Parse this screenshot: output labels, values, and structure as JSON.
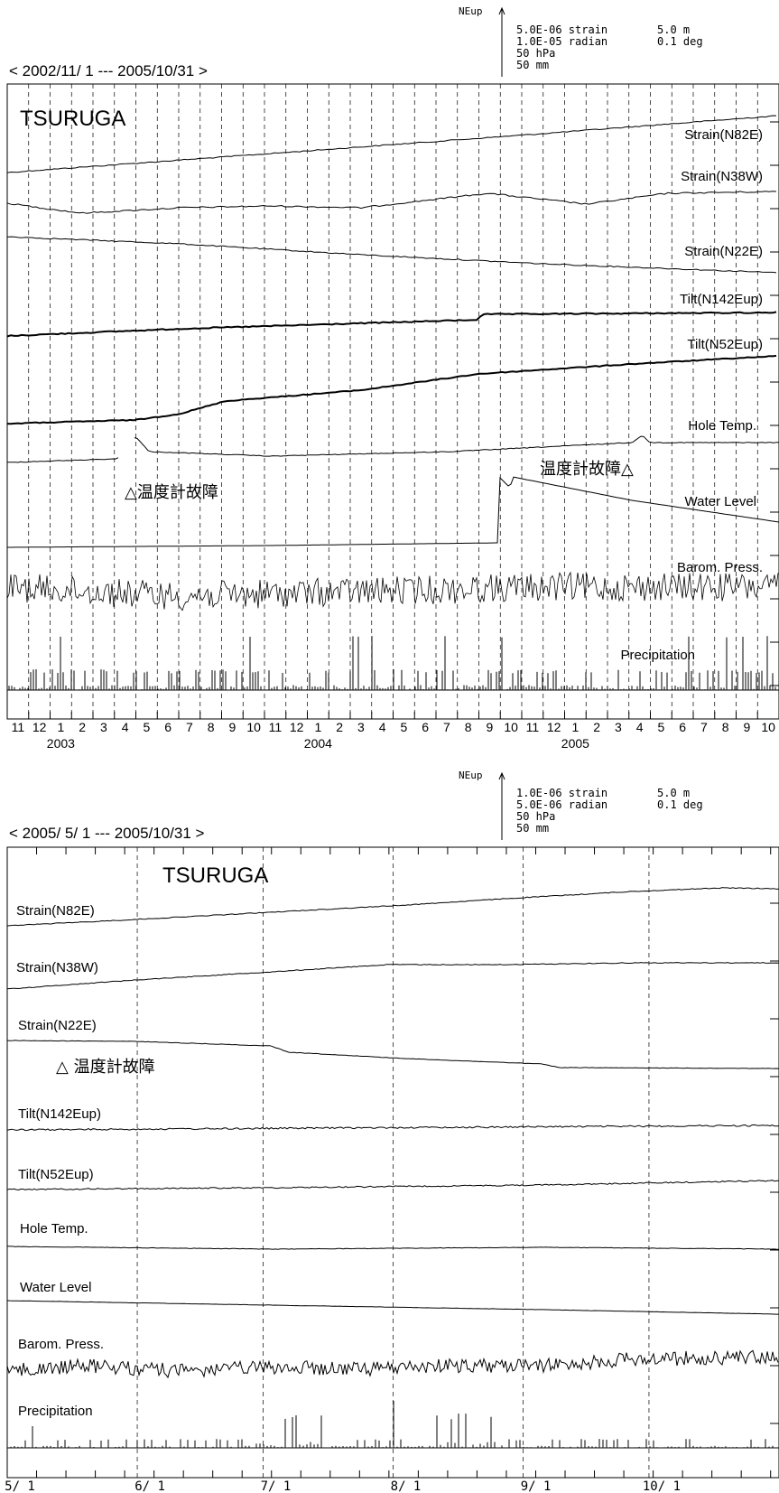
{
  "chart_data": [
    {
      "type": "line",
      "station": "TSURUGA",
      "period": "< 2002/11/ 1 --- 2005/10/31 >",
      "scale_legend": {
        "arrow_label": "NEup",
        "left": [
          "5.0E-06 strain",
          "1.0E-05 radian",
          "50 hPa",
          "50 mm"
        ],
        "right": [
          "5.0 m",
          "0.1 deg"
        ]
      },
      "month_labels": [
        "11",
        "12",
        "1",
        "2",
        "3",
        "4",
        "5",
        "6",
        "7",
        "8",
        "9",
        "10",
        "11",
        "12",
        "1",
        "2",
        "3",
        "4",
        "5",
        "6",
        "7",
        "8",
        "9",
        "10",
        "11",
        "12",
        "1",
        "2",
        "3",
        "4",
        "5",
        "6",
        "7",
        "8",
        "9",
        "10"
      ],
      "year_labels": [
        {
          "text": "2003",
          "month_index": 2
        },
        {
          "text": "2004",
          "month_index": 14
        },
        {
          "text": "2005",
          "month_index": 26
        }
      ],
      "annotations": [
        {
          "text": "△温度計故障"
        },
        {
          "text": "温度計故障△"
        }
      ],
      "series": [
        {
          "name": "Strain(N82E)"
        },
        {
          "name": "Strain(N38W)"
        },
        {
          "name": "Strain(N22E)"
        },
        {
          "name": "Tilt(N142Eup)"
        },
        {
          "name": "Tilt(N52Eup)"
        },
        {
          "name": "Hole Temp."
        },
        {
          "name": "Water Level"
        },
        {
          "name": "Barom. Press."
        },
        {
          "name": "Precipitation"
        }
      ]
    },
    {
      "type": "line",
      "station": "TSURUGA",
      "period": "< 2005/ 5/ 1 --- 2005/10/31 >",
      "scale_legend": {
        "arrow_label": "NEup",
        "left": [
          "1.0E-06 strain",
          "5.0E-06 radian",
          "50 hPa",
          "50 mm"
        ],
        "right": [
          "5.0 m",
          "0.1 deg"
        ]
      },
      "month_labels": [
        "5/ 1",
        "6/ 1",
        "7/ 1",
        "8/ 1",
        "9/ 1",
        "10/ 1"
      ],
      "annotations": [
        {
          "text": "△ 温度計故障"
        }
      ],
      "series": [
        {
          "name": "Strain(N82E)"
        },
        {
          "name": "Strain(N38W)"
        },
        {
          "name": "Strain(N22E)"
        },
        {
          "name": "Tilt(N142Eup)"
        },
        {
          "name": "Tilt(N52Eup)"
        },
        {
          "name": "Hole Temp."
        },
        {
          "name": "Water Level"
        },
        {
          "name": "Barom. Press."
        },
        {
          "name": "Precipitation"
        }
      ]
    }
  ]
}
